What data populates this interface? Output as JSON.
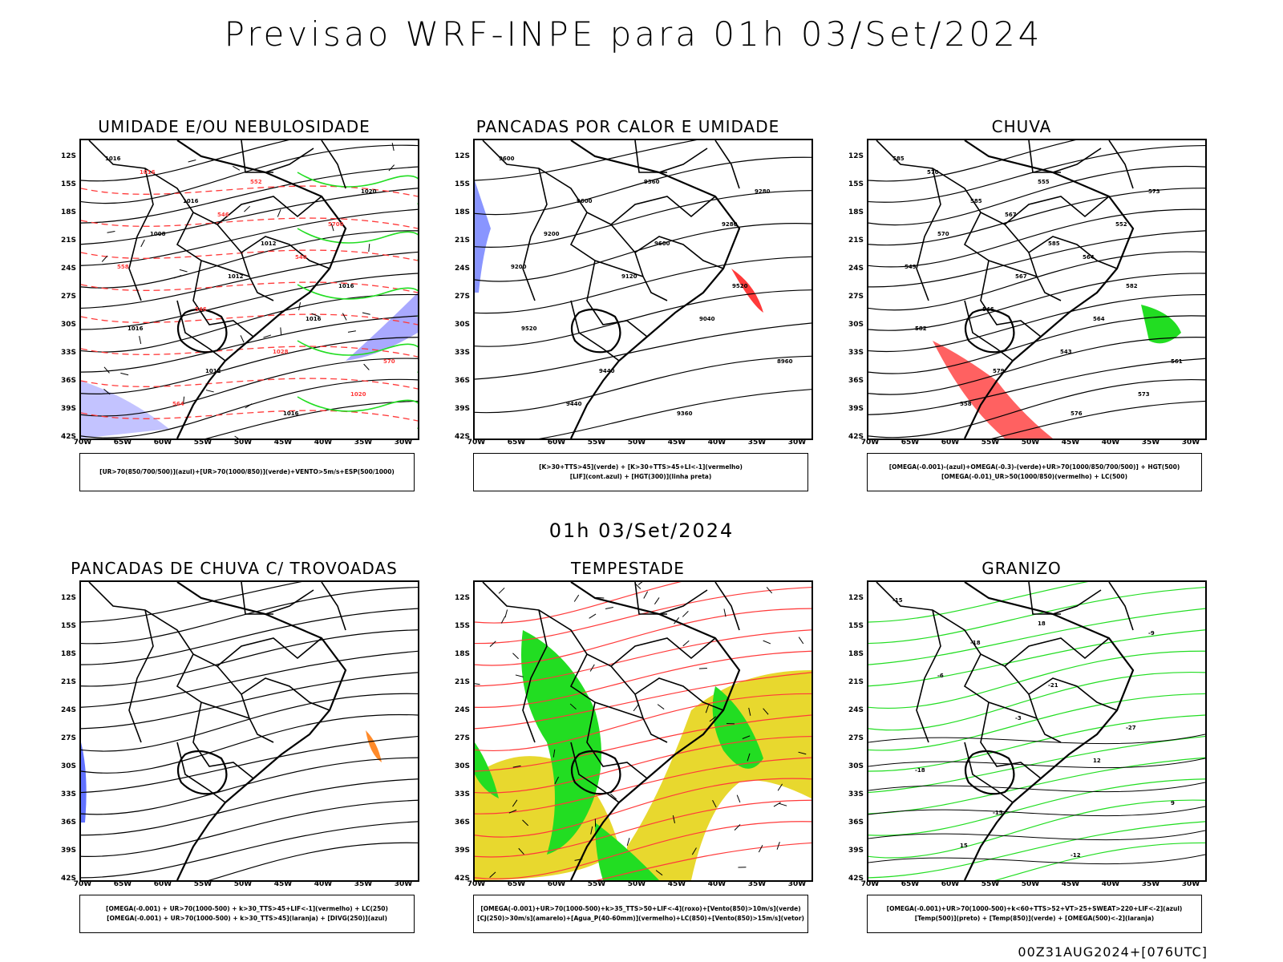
{
  "title": "Previsao WRF-INPE  para 01h 03/Set/2024",
  "mid_title": "01h 03/Set/2024",
  "footer": "00Z31AUG2024+[076UTC]",
  "axes": {
    "lat": [
      "12S",
      "15S",
      "18S",
      "21S",
      "24S",
      "27S",
      "30S",
      "33S",
      "36S",
      "39S",
      "42S"
    ],
    "lon": [
      "70W",
      "65W",
      "60W",
      "55W",
      "50W",
      "45W",
      "40W",
      "35W",
      "30W"
    ]
  },
  "panels": [
    {
      "id": "umidade",
      "title": "UMIDADE E/OU NEBULOSIDADE",
      "legend": [
        "[UR>70(850/700/500)](azul)+[UR>70(1000/850)](verde)+VENTO>5m/s+ESP(500/1000)"
      ],
      "contour_labels": [
        "1016",
        "1016",
        "1012",
        "1016",
        "1016",
        "1012",
        "1016",
        "1020",
        "1008",
        "1012",
        "1016",
        "570",
        "564",
        "552",
        "5700",
        "558",
        "546",
        "1028",
        "1020",
        "1016",
        "546",
        "540"
      ]
    },
    {
      "id": "pancadas-calor",
      "title": "PANCADAS POR CALOR E UMIDADE",
      "legend": [
        "[K>30+TTS>45](verde) + [K>30+TTS>45+LI<-1](vermelho)",
        "[LIF](cont.azul) + [HGT(300)](linha preta)"
      ],
      "contour_labels": [
        "9600",
        "9600",
        "9600",
        "9520",
        "9520",
        "9440",
        "9360",
        "9280",
        "9200",
        "9120",
        "9040",
        "8960",
        "9440",
        "9360",
        "9280",
        "9200"
      ]
    },
    {
      "id": "chuva",
      "title": "CHUVA",
      "legend": [
        "[OMEGA(-0.001)-(azul)+OMEGA(-0.3)-(verde)+UR>70(1000/850/700/500)] + HGT(500)",
        "[OMEGA(-0.01)_UR>50(1000/850)(vermelho) + LC(500)"
      ],
      "contour_labels": [
        "585",
        "585",
        "585",
        "582",
        "582",
        "579",
        "576",
        "573",
        "570",
        "567",
        "564",
        "561",
        "558",
        "555",
        "552",
        "549",
        "546",
        "543",
        "573",
        "570",
        "567",
        "564"
      ]
    },
    {
      "id": "trovoadas",
      "title": "PANCADAS DE CHUVA C/ TROVOADAS",
      "legend": [
        "[OMEGA(-0.001) + UR>70(1000-500) + k>30_TTS>45+LIF<-1](vermelho) + LC(250)",
        "[OMEGA(-0.001) + UR>70(1000-500) + k>30_TTS>45](laranja) + [DIVG(250)](azul)"
      ],
      "contour_labels": []
    },
    {
      "id": "tempestade",
      "title": "TEMPESTADE",
      "legend": [
        "[OMEGA(-0.001)+UR>70(1000-500)+k>35_TTS>50+LIF<-4](roxo)+[Vento(850)>10m/s](verde)",
        "[CJ(250)>30m/s](amarelo)+[Agua_P(40-60mm)](vermelho)+LC(850)+[Vento(850)>15m/s](vetor)"
      ],
      "contour_labels": []
    },
    {
      "id": "granizo",
      "title": "GRANIZO",
      "legend": [
        "[OMEGA(-0.001)+UR>70(1000-500)+k<60+TTS>52+VT>25+SWEAT>220+LIF<-2](azul)",
        "[Temp(500)](preto) + [Temp(850)](verde) + [OMEGA(500)<-2](laranja)"
      ],
      "contour_labels": [
        "-15",
        "-18",
        "-21",
        "-27",
        "-18",
        "-15",
        "-12",
        "-9",
        "-6",
        "-3",
        "12",
        "9",
        "15",
        "18"
      ]
    }
  ],
  "colors": {
    "blue": "#3a4fff",
    "light_blue": "#a9a9ff",
    "green": "#22dd22",
    "red": "#ff3a3a",
    "dark_teal": "#1e4f4f",
    "yellow": "#e8d82e",
    "orange": "#ff8a2a",
    "contour": "#000000"
  }
}
